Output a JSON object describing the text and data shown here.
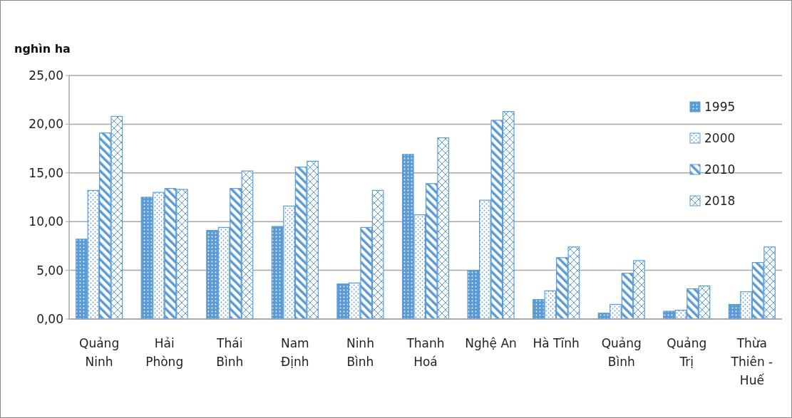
{
  "chart_data": {
    "type": "bar",
    "ylabel": "nghìn ha",
    "categories": [
      "Quảng Ninh",
      "Hải Phòng",
      "Thái Bình",
      "Nam Định",
      "Ninh Bình",
      "Thanh Hoá",
      "Nghệ An",
      "Hà Tĩnh",
      "Quảng Bình",
      "Quảng Trị",
      "Thừa Thiên - Huế"
    ],
    "series": [
      {
        "name": "1995",
        "color": "#5b9bd5",
        "values": [
          8.2,
          12.5,
          9.1,
          9.5,
          3.6,
          16.9,
          5.0,
          2.0,
          0.6,
          0.8,
          1.5
        ]
      },
      {
        "name": "2000",
        "color": "#5b9bd5",
        "values": [
          13.2,
          13.0,
          9.4,
          11.6,
          3.7,
          10.7,
          12.2,
          2.9,
          1.5,
          0.9,
          2.8
        ]
      },
      {
        "name": "2010",
        "color": "#5b9bd5",
        "values": [
          19.1,
          13.4,
          13.4,
          15.6,
          9.4,
          13.9,
          20.4,
          6.3,
          4.7,
          3.1,
          5.8
        ]
      },
      {
        "name": "2018",
        "color": "#5b9bd5",
        "values": [
          20.8,
          13.3,
          15.2,
          16.2,
          13.2,
          18.6,
          21.3,
          7.4,
          6.0,
          3.4,
          7.4
        ]
      }
    ],
    "ylim": [
      0,
      25
    ],
    "yticks": [
      {
        "value": 0,
        "label": "0,00"
      },
      {
        "value": 5,
        "label": "5,00"
      },
      {
        "value": 10,
        "label": "10,00"
      },
      {
        "value": 15,
        "label": "15,00"
      },
      {
        "value": 20,
        "label": "20,00"
      },
      {
        "value": 25,
        "label": "25,00"
      }
    ],
    "grid": "y",
    "legend": "right"
  }
}
